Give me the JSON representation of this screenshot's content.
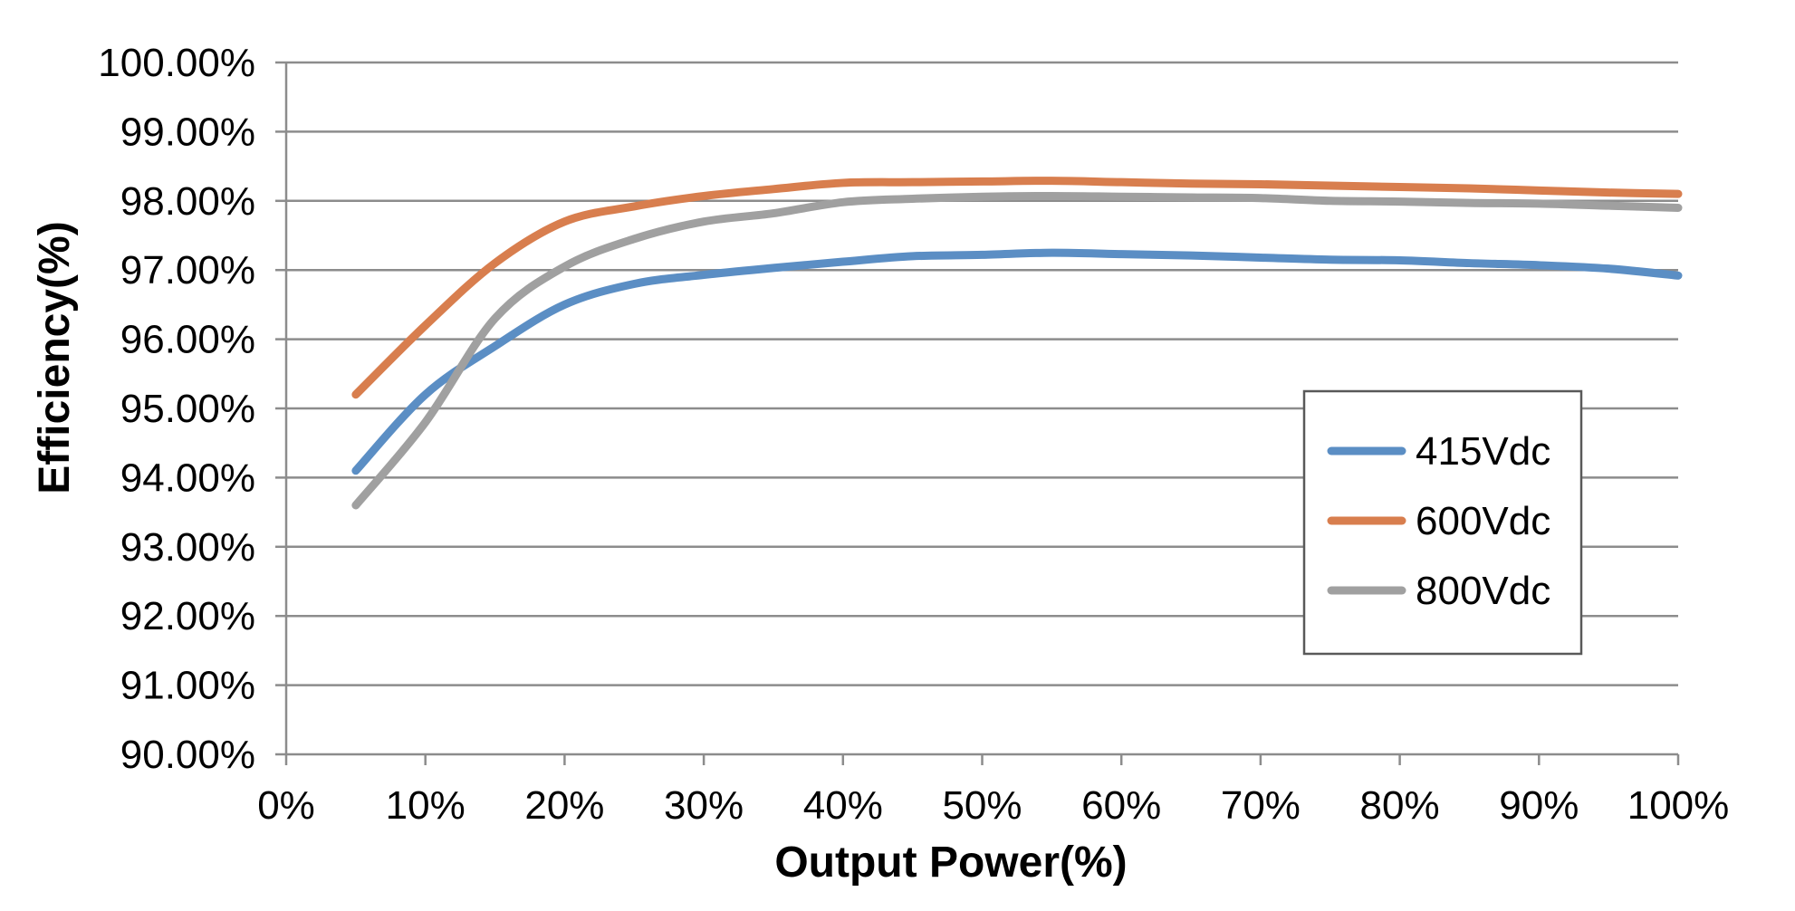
{
  "chart_data": {
    "type": "line",
    "xlabel": "Output Power(%)",
    "ylabel": "Efficiency(%)",
    "xlim": [
      0,
      100
    ],
    "ylim": [
      90,
      100
    ],
    "x_ticks": [
      "0%",
      "10%",
      "20%",
      "30%",
      "40%",
      "50%",
      "60%",
      "70%",
      "80%",
      "90%",
      "100%"
    ],
    "y_ticks": [
      "90.00%",
      "91.00%",
      "92.00%",
      "93.00%",
      "94.00%",
      "95.00%",
      "96.00%",
      "97.00%",
      "98.00%",
      "99.00%",
      "100.00%"
    ],
    "grid": "horizontal",
    "legend_position": "right",
    "x": [
      5,
      10,
      15,
      20,
      25,
      30,
      35,
      40,
      45,
      50,
      55,
      60,
      65,
      70,
      75,
      80,
      85,
      90,
      95,
      100
    ],
    "series": [
      {
        "name": "415Vdc",
        "color": "#5b8ec4",
        "values": [
          94.1,
          95.2,
          95.9,
          96.5,
          96.8,
          96.93,
          97.03,
          97.12,
          97.2,
          97.22,
          97.25,
          97.23,
          97.21,
          97.18,
          97.15,
          97.14,
          97.1,
          97.07,
          97.02,
          96.92
        ]
      },
      {
        "name": "600Vdc",
        "color": "#d87e4e",
        "values": [
          95.2,
          96.2,
          97.1,
          97.7,
          97.92,
          98.07,
          98.17,
          98.26,
          98.27,
          98.28,
          98.29,
          98.27,
          98.25,
          98.24,
          98.22,
          98.2,
          98.18,
          98.15,
          98.12,
          98.1
        ]
      },
      {
        "name": "800Vdc",
        "color": "#a0a0a0",
        "values": [
          93.6,
          94.8,
          96.3,
          97.05,
          97.45,
          97.7,
          97.82,
          97.98,
          98.03,
          98.06,
          98.07,
          98.06,
          98.05,
          98.04,
          98.0,
          97.99,
          97.97,
          97.96,
          97.93,
          97.9
        ]
      }
    ]
  }
}
